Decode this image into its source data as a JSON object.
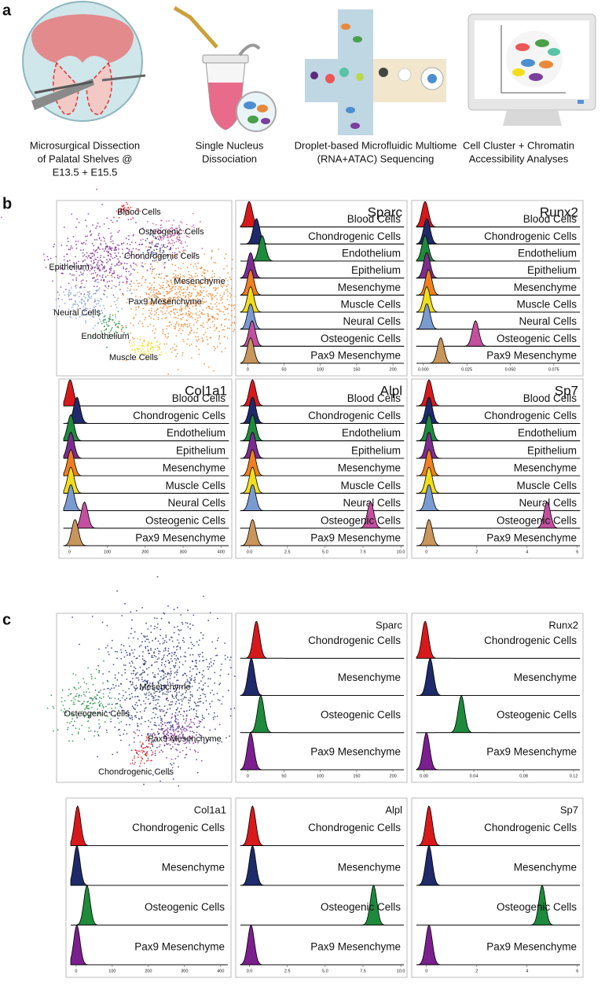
{
  "panel_a": {
    "label": "a",
    "steps": [
      [
        "Microsurgical Dissection",
        "of Palatal Shelves @",
        "E13.5 + E15.5"
      ],
      [
        "Single Nucleus",
        "Dissociation"
      ],
      [
        "Droplet-based Microfluidic Multiome",
        "(RNA+ATAC) Sequencing"
      ],
      [
        "Cell Cluster + Chromatin",
        "Accessibility Analyses"
      ]
    ]
  },
  "panel_b": {
    "label": "b",
    "categories": [
      "Blood Cells",
      "Chondrogenic Cells",
      "Endothelium",
      "Epithelium",
      "Mesenchyme",
      "Muscle Cells",
      "Neural Cells",
      "Osteogenic Cells",
      "Pax9 Mesenchyme"
    ],
    "colors": [
      "#d7191c",
      "#1f2a6b",
      "#1e8a3c",
      "#7b2d8e",
      "#f07f1f",
      "#f2dd1a",
      "#7a9bd1",
      "#c2509e",
      "#c8955a"
    ],
    "ridges": [
      {
        "title": "Sparc",
        "xlim": [
          -10,
          215
        ],
        "xticks": [
          0,
          50,
          100,
          150,
          200
        ],
        "peaks": [
          2,
          12,
          20,
          4,
          4,
          4,
          4,
          6,
          4
        ]
      },
      {
        "title": "Runx2",
        "xlim": [
          -0.004,
          0.09
        ],
        "xticks": [
          {
            "value": 0,
            "label": "0.000"
          },
          {
            "value": 0.025,
            "label": "0.025"
          },
          {
            "value": 0.05,
            "label": "0.050"
          },
          {
            "value": 0.075,
            "label": "0.075"
          }
        ],
        "peaks": [
          0.001,
          0.002,
          0.001,
          0.002,
          0.003,
          0.002,
          0.002,
          0.03,
          0.01
        ]
      },
      {
        "title": "Col1a1",
        "xlim": [
          -15,
          420
        ],
        "xticks": [
          0,
          100,
          200,
          300,
          400
        ],
        "peaks": [
          2,
          20,
          4,
          4,
          4,
          4,
          4,
          40,
          15
        ]
      },
      {
        "title": "Alpl",
        "xlim": [
          -0.6,
          10.2
        ],
        "xticks": [
          {
            "value": 0,
            "label": "0.0"
          },
          {
            "value": 2.5,
            "label": "2.5"
          },
          {
            "value": 5,
            "label": "5.0"
          },
          {
            "value": 7.5,
            "label": "7.5"
          },
          {
            "value": 10,
            "label": "10.0"
          }
        ],
        "peaks": [
          0.2,
          0.2,
          0.2,
          0.2,
          0.2,
          0.2,
          0.2,
          8,
          0.2
        ]
      },
      {
        "title": "Sp7",
        "xlim": [
          -0.4,
          6.1
        ],
        "xticks": [
          0,
          2,
          4,
          6
        ],
        "peaks": [
          0.1,
          0.1,
          0.1,
          0.1,
          0.1,
          0.1,
          0.1,
          4.8,
          0.1
        ]
      }
    ]
  },
  "panel_c": {
    "label": "c",
    "categories": [
      "Chondrogenic Cells",
      "Mesenchyme",
      "Osteogenic Cells",
      "Pax9 Mesenchyme"
    ],
    "colors": [
      "#d7191c",
      "#1f2a6b",
      "#1e8a3c",
      "#7b1f8e"
    ],
    "ridges": [
      {
        "title": "Sparc",
        "xlim": [
          -10,
          215
        ],
        "xticks": [
          0,
          50,
          100,
          150,
          200
        ],
        "peaks": [
          12,
          5,
          18,
          4
        ]
      },
      {
        "title": "Runx2",
        "xlim": [
          -0.006,
          0.125
        ],
        "xticks": [
          {
            "value": 0,
            "label": "0.00"
          },
          {
            "value": 0.04,
            "label": "0.04"
          },
          {
            "value": 0.08,
            "label": "0.08"
          },
          {
            "value": 0.12,
            "label": "0.12"
          }
        ],
        "peaks": [
          0.001,
          0.005,
          0.03,
          0.002
        ]
      },
      {
        "title": "Col1a1",
        "xlim": [
          -15,
          420
        ],
        "xticks": [
          0,
          100,
          200,
          300,
          400
        ],
        "peaks": [
          4,
          2,
          30,
          2
        ]
      },
      {
        "title": "Alpl",
        "xlim": [
          -0.6,
          10.2
        ],
        "xticks": [
          {
            "value": 0,
            "label": "0.0"
          },
          {
            "value": 2.5,
            "label": "2.5"
          },
          {
            "value": 5,
            "label": "5.0"
          },
          {
            "value": 7.5,
            "label": "7.5"
          },
          {
            "value": 10,
            "label": "10.0"
          }
        ],
        "peaks": [
          0.2,
          0.2,
          8.2,
          0.1
        ]
      },
      {
        "title": "Sp7",
        "xlim": [
          -0.4,
          6.1
        ],
        "xticks": [
          0,
          2,
          4,
          6
        ],
        "peaks": [
          0.1,
          0.1,
          4.6,
          0.1
        ]
      }
    ]
  }
}
